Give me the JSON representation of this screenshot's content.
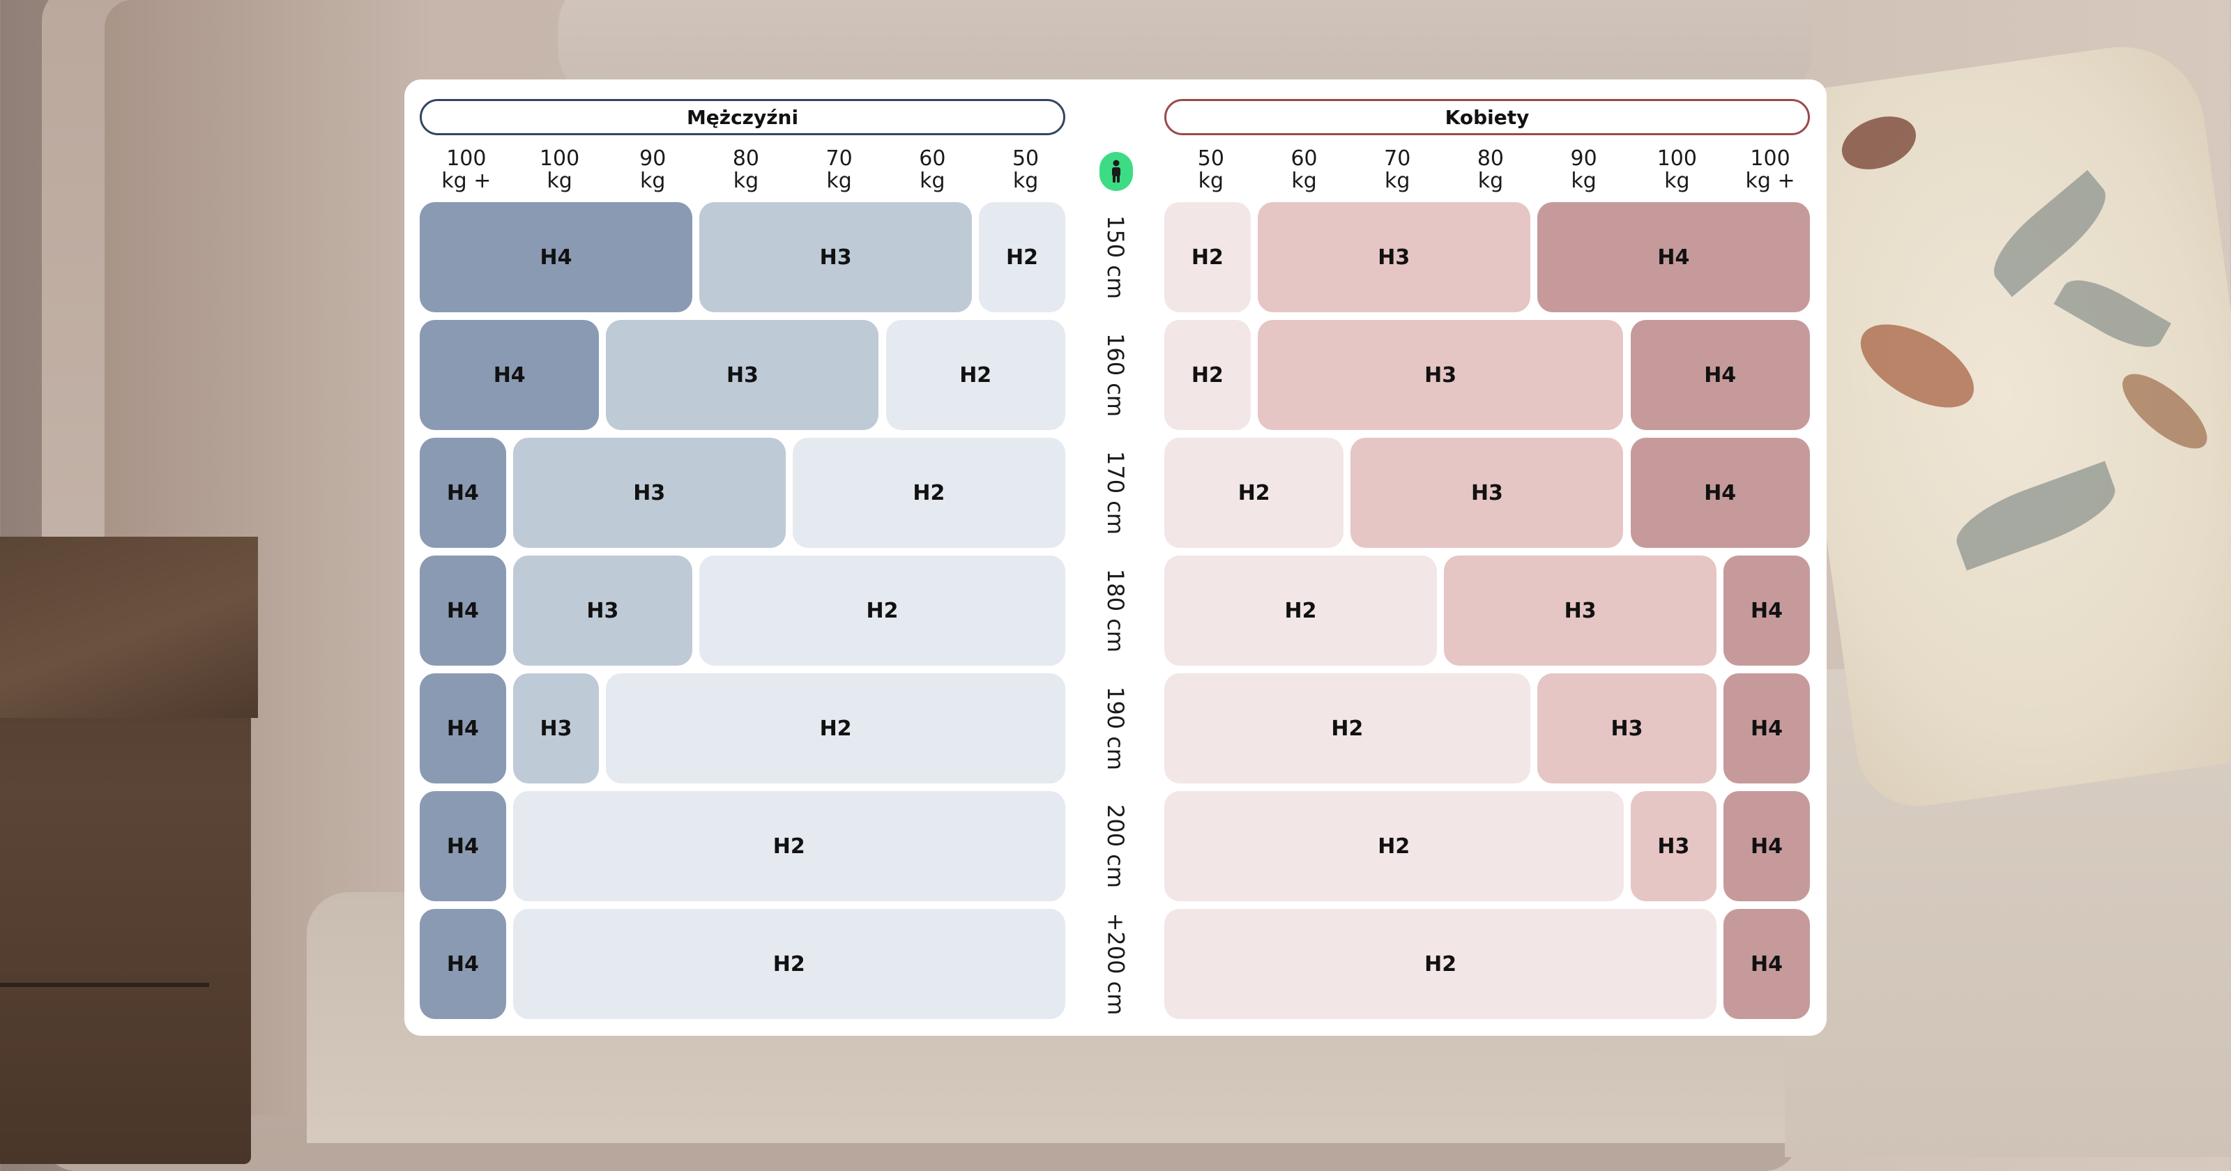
{
  "sections": {
    "men": "Mężczyźni",
    "women": "Kobiety"
  },
  "men_weights": [
    [
      "100",
      "kg +"
    ],
    [
      "100",
      "kg"
    ],
    [
      "90",
      "kg"
    ],
    [
      "80",
      "kg"
    ],
    [
      "70",
      "kg"
    ],
    [
      "60",
      "kg"
    ],
    [
      "50",
      "kg"
    ]
  ],
  "women_weights": [
    [
      "50",
      "kg"
    ],
    [
      "60",
      "kg"
    ],
    [
      "70",
      "kg"
    ],
    [
      "80",
      "kg"
    ],
    [
      "90",
      "kg"
    ],
    [
      "100",
      "kg"
    ],
    [
      "100",
      "kg +"
    ]
  ],
  "heights": [
    "150 cm",
    "160 cm",
    "170 cm",
    "180 cm",
    "190 cm",
    "200 cm",
    "+200 cm"
  ],
  "colors": {
    "men_h4": "#8a9ab2",
    "men_h3": "#bfcad7",
    "men_h2": "#e5e9f0",
    "women_h2": "#f2e6e6",
    "women_h3": "#e6c5c5",
    "women_h4": "#c69a9b",
    "men_border": "#33465f",
    "women_border": "#9a4a4a",
    "person_badge": "#3ddc84"
  },
  "icons": {
    "person": "person-icon"
  },
  "chart_data": [
    {
      "type": "heatmap",
      "title": "Mężczyźni",
      "columns": [
        "100 kg +",
        "100 kg",
        "90 kg",
        "80 kg",
        "70 kg",
        "60 kg",
        "50 kg"
      ],
      "rows": [
        "150 cm",
        "160 cm",
        "170 cm",
        "180 cm",
        "190 cm",
        "200 cm",
        "+200 cm"
      ],
      "segments": [
        [
          {
            "label": "H4",
            "span": 3
          },
          {
            "label": "H3",
            "span": 3
          },
          {
            "label": "H2",
            "span": 1
          }
        ],
        [
          {
            "label": "H4",
            "span": 2
          },
          {
            "label": "H3",
            "span": 3
          },
          {
            "label": "H2",
            "span": 2
          }
        ],
        [
          {
            "label": "H4",
            "span": 1
          },
          {
            "label": "H3",
            "span": 3
          },
          {
            "label": "H2",
            "span": 3
          }
        ],
        [
          {
            "label": "H4",
            "span": 1
          },
          {
            "label": "H3",
            "span": 2
          },
          {
            "label": "H2",
            "span": 4
          }
        ],
        [
          {
            "label": "H4",
            "span": 1
          },
          {
            "label": "H3",
            "span": 1
          },
          {
            "label": "H2",
            "span": 5
          }
        ],
        [
          {
            "label": "H4",
            "span": 1
          },
          {
            "label": "H2",
            "span": 6
          }
        ],
        [
          {
            "label": "H4",
            "span": 1
          },
          {
            "label": "H2",
            "span": 6
          }
        ]
      ]
    },
    {
      "type": "heatmap",
      "title": "Kobiety",
      "columns": [
        "50 kg",
        "60 kg",
        "70 kg",
        "80 kg",
        "90 kg",
        "100 kg",
        "100 kg +"
      ],
      "rows": [
        "150 cm",
        "160 cm",
        "170 cm",
        "180 cm",
        "190 cm",
        "200 cm",
        "+200 cm"
      ],
      "segments": [
        [
          {
            "label": "H2",
            "span": 1
          },
          {
            "label": "H3",
            "span": 3
          },
          {
            "label": "H4",
            "span": 3
          }
        ],
        [
          {
            "label": "H2",
            "span": 1
          },
          {
            "label": "H3",
            "span": 4
          },
          {
            "label": "H4",
            "span": 2
          }
        ],
        [
          {
            "label": "H2",
            "span": 2
          },
          {
            "label": "H3",
            "span": 3
          },
          {
            "label": "H4",
            "span": 2
          }
        ],
        [
          {
            "label": "H2",
            "span": 3
          },
          {
            "label": "H3",
            "span": 3
          },
          {
            "label": "H4",
            "span": 1
          }
        ],
        [
          {
            "label": "H2",
            "span": 4
          },
          {
            "label": "H3",
            "span": 2
          },
          {
            "label": "H4",
            "span": 1
          }
        ],
        [
          {
            "label": "H2",
            "span": 5
          },
          {
            "label": "H3",
            "span": 1
          },
          {
            "label": "H4",
            "span": 1
          }
        ],
        [
          {
            "label": "H2",
            "span": 6
          },
          {
            "label": "H4",
            "span": 1
          }
        ]
      ]
    }
  ]
}
